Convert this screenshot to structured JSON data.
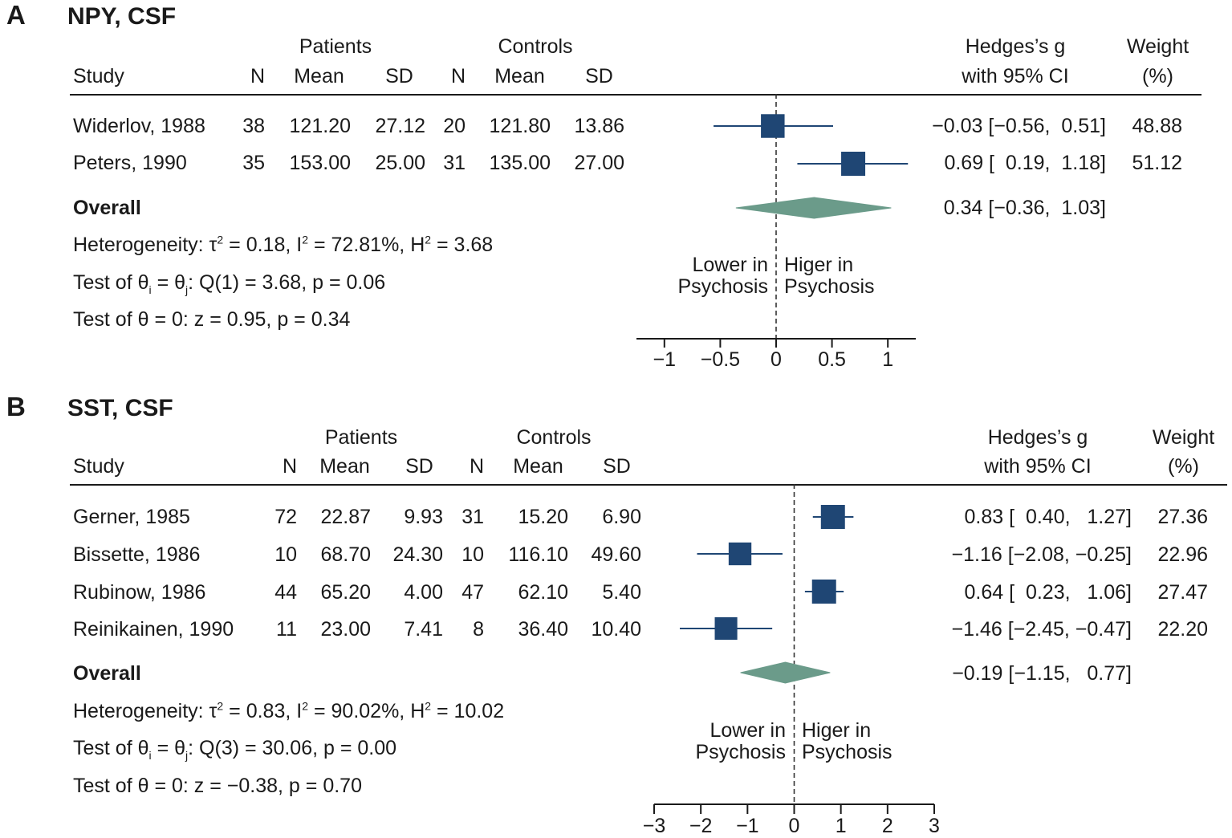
{
  "chart_data": [
    {
      "type": "forest",
      "panel_letter": "A",
      "title": "NPY, CSF",
      "group_headers": {
        "patients": "Patients",
        "controls": "Controls"
      },
      "column_headers": {
        "study": "Study",
        "n": "N",
        "mean": "Mean",
        "sd": "SD",
        "effect_l1": "Hedges’s g",
        "effect_l2": "with 95% CI",
        "weight_l1": "Weight",
        "weight_l2": "(%)"
      },
      "studies": [
        {
          "study": "Widerlov, 1988",
          "p_n": "38",
          "p_mean": "121.20",
          "p_sd": "27.12",
          "c_n": "20",
          "c_mean": "121.80",
          "c_sd": "13.86",
          "g": -0.03,
          "lo": -0.56,
          "hi": 0.51,
          "ci_text": "−0.03 [−0.56,  0.51]",
          "weight": "48.88"
        },
        {
          "study": "Peters, 1990",
          "p_n": "35",
          "p_mean": "153.00",
          "p_sd": "25.00",
          "c_n": "31",
          "c_mean": "135.00",
          "c_sd": "27.00",
          "g": 0.69,
          "lo": 0.19,
          "hi": 1.18,
          "ci_text": "0.69 [  0.19,  1.18]",
          "weight": "51.12"
        }
      ],
      "overall": {
        "label": "Overall",
        "g": 0.34,
        "lo": -0.36,
        "hi": 1.03,
        "ci_text": "0.34 [−0.36,  1.03]"
      },
      "heterogeneity": {
        "prefix": "Heterogeneity: τ",
        "tau2": " = 0.18, I",
        "i2": " = 72.81%, H",
        "h2": " = 3.68"
      },
      "test_hetero": {
        "prefix": "Test of θ",
        "i": "i",
        "mid": " = θ",
        "j": "j",
        "rest": ": Q(1) = 3.68, p = 0.06"
      },
      "test_zero": "Test of θ = 0: z = 0.95, p = 0.34",
      "direction_left": [
        "Lower in",
        "Psychosis"
      ],
      "direction_right": [
        "Higer in",
        "Psychosis"
      ],
      "xlim": [
        -1.25,
        1.25
      ],
      "xticks": [
        -1,
        -0.5,
        0,
        0.5,
        1
      ],
      "xtick_labels": [
        "−1",
        "−0.5",
        "0",
        "0.5",
        "1"
      ],
      "box_color": "#1f4674",
      "diamond_color": "#6b9b8a"
    },
    {
      "type": "forest",
      "panel_letter": "B",
      "title": "SST, CSF",
      "group_headers": {
        "patients": "Patients",
        "controls": "Controls"
      },
      "column_headers": {
        "study": "Study",
        "n": "N",
        "mean": "Mean",
        "sd": "SD",
        "effect_l1": "Hedges’s g",
        "effect_l2": "with 95% CI",
        "weight_l1": "Weight",
        "weight_l2": "(%)"
      },
      "studies": [
        {
          "study": "Gerner, 1985",
          "p_n": "72",
          "p_mean": "22.87",
          "p_sd": "9.93",
          "c_n": "31",
          "c_mean": "15.20",
          "c_sd": "6.90",
          "g": 0.83,
          "lo": 0.4,
          "hi": 1.27,
          "ci_text": "0.83 [  0.40,   1.27]",
          "weight": "27.36"
        },
        {
          "study": "Bissette, 1986",
          "p_n": "10",
          "p_mean": "68.70",
          "p_sd": "24.30",
          "c_n": "10",
          "c_mean": "116.10",
          "c_sd": "49.60",
          "g": -1.16,
          "lo": -2.08,
          "hi": -0.25,
          "ci_text": "−1.16 [−2.08, −0.25]",
          "weight": "22.96"
        },
        {
          "study": "Rubinow, 1986",
          "p_n": "44",
          "p_mean": "65.20",
          "p_sd": "4.00",
          "c_n": "47",
          "c_mean": "62.10",
          "c_sd": "5.40",
          "g": 0.64,
          "lo": 0.23,
          "hi": 1.06,
          "ci_text": "0.64 [  0.23,   1.06]",
          "weight": "27.47"
        },
        {
          "study": "Reinikainen, 1990",
          "p_n": "11",
          "p_mean": "23.00",
          "p_sd": "7.41",
          "c_n": "8",
          "c_mean": "36.40",
          "c_sd": "10.40",
          "g": -1.46,
          "lo": -2.45,
          "hi": -0.47,
          "ci_text": "−1.46 [−2.45, −0.47]",
          "weight": "22.20"
        }
      ],
      "overall": {
        "label": "Overall",
        "g": -0.19,
        "lo": -1.15,
        "hi": 0.77,
        "ci_text": "−0.19 [−1.15,   0.77]"
      },
      "heterogeneity": {
        "prefix": "Heterogeneity: τ",
        "tau2": " = 0.83, I",
        "i2": " = 90.02%, H",
        "h2": " = 10.02"
      },
      "test_hetero": {
        "prefix": "Test of θ",
        "i": "i",
        "mid": " = θ",
        "j": "j",
        "rest": ": Q(3) = 30.06, p = 0.00"
      },
      "test_zero": "Test of θ = 0: z = −0.38, p = 0.70",
      "direction_left": [
        "Lower in",
        "Psychosis"
      ],
      "direction_right": [
        "Higer in",
        "Psychosis"
      ],
      "xlim": [
        -3,
        3
      ],
      "xticks": [
        -3,
        -2,
        -1,
        0,
        1,
        2,
        3
      ],
      "xtick_labels": [
        "−3",
        "−2",
        "−1",
        "0",
        "1",
        "2",
        "3"
      ],
      "box_color": "#1f4674",
      "diamond_color": "#6b9b8a"
    }
  ]
}
